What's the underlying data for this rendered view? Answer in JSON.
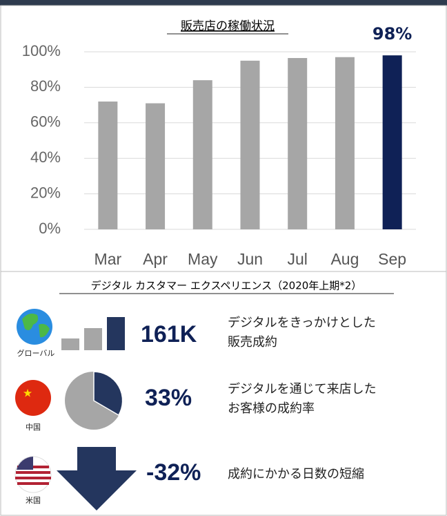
{
  "chart_data": {
    "type": "bar",
    "title": "販売店の稼働状況",
    "categories": [
      "Mar",
      "Apr",
      "May",
      "Jun",
      "Jul",
      "Aug",
      "Sep"
    ],
    "values": [
      72,
      71,
      84,
      95,
      96.5,
      97,
      98
    ],
    "value_labels": [
      null,
      null,
      null,
      null,
      null,
      null,
      "98%"
    ],
    "colors": [
      "#a6a6a6",
      "#a6a6a6",
      "#a6a6a6",
      "#a6a6a6",
      "#a6a6a6",
      "#a6a6a6",
      "#0f2156"
    ],
    "ylim": [
      0,
      100
    ],
    "yticks": [
      {
        "value": 0,
        "label": "0%"
      },
      {
        "value": 20,
        "label": "20%"
      },
      {
        "value": 40,
        "label": "40%"
      },
      {
        "value": 60,
        "label": "60%"
      },
      {
        "value": 80,
        "label": "80%"
      },
      {
        "value": 100,
        "label": "100%"
      }
    ],
    "grid": true
  },
  "section": {
    "title": "デジタル カスタマー エクスペリエンス（2020年上期*2）",
    "rows": [
      {
        "region": "グローバル",
        "stat": "161K",
        "text": [
          "デジタルをきっかけとした",
          "販売成約"
        ]
      },
      {
        "region": "中国",
        "stat": "33%",
        "text": [
          "デジタルを通じて来店した",
          "お客様の成約率"
        ]
      },
      {
        "region": "米国",
        "stat": "-32%",
        "text": [
          "成約にかかる日数の短縮"
        ]
      }
    ]
  }
}
